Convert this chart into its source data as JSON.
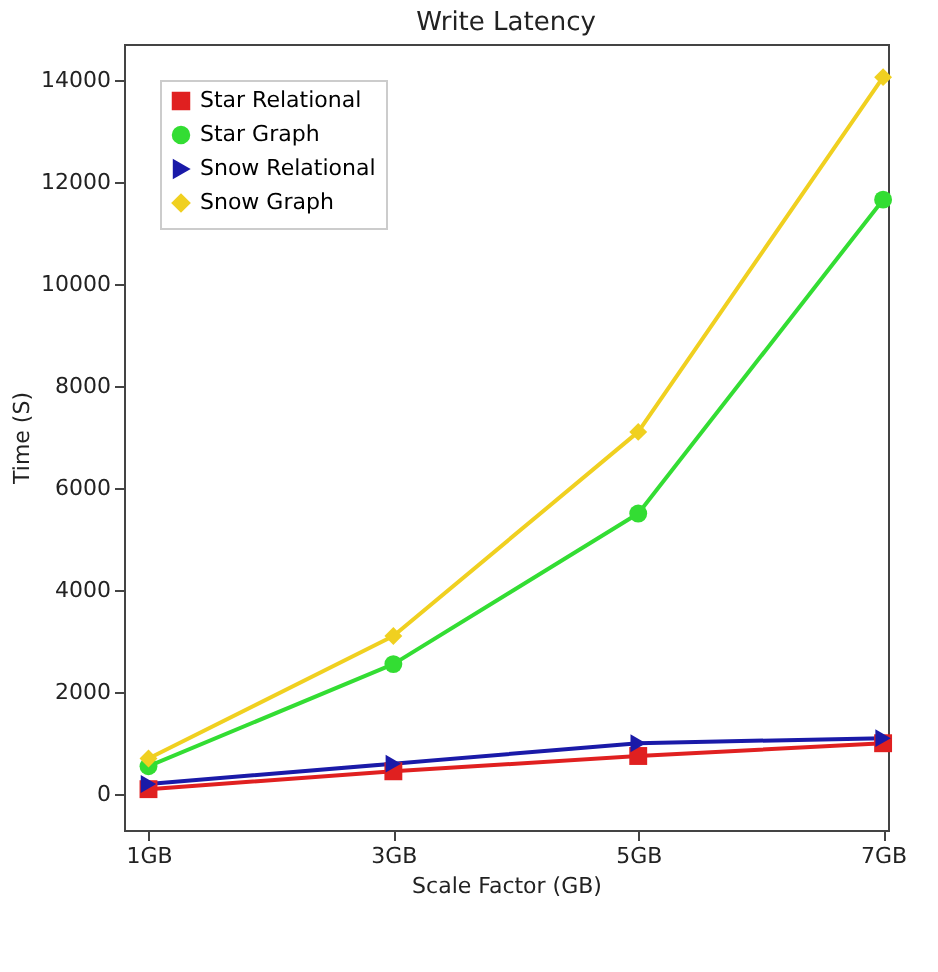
{
  "chart_data": {
    "type": "line",
    "title": "Write Latency",
    "xlabel": "Scale Factor (GB)",
    "ylabel": "Time (S)",
    "categories": [
      "1GB",
      "3GB",
      "5GB",
      "7GB"
    ],
    "series": [
      {
        "name": "Star Relational",
        "color": "#e02020",
        "marker": "square",
        "values": [
          100,
          450,
          750,
          1000
        ]
      },
      {
        "name": "Star Graph",
        "color": "#33dd33",
        "marker": "circle",
        "values": [
          550,
          2550,
          5500,
          11650
        ]
      },
      {
        "name": "Snow Relational",
        "color": "#1a1aa8",
        "marker": "triangle",
        "values": [
          200,
          600,
          1000,
          1100
        ]
      },
      {
        "name": "Snow Graph",
        "color": "#f0d020",
        "marker": "diamond",
        "values": [
          700,
          3100,
          7100,
          14050
        ]
      }
    ],
    "ylim": [
      -700,
      14700
    ],
    "yticks": [
      0,
      2000,
      4000,
      6000,
      8000,
      10000,
      12000,
      14000
    ],
    "grid": false,
    "legend": "top left",
    "line_style": "solid"
  }
}
